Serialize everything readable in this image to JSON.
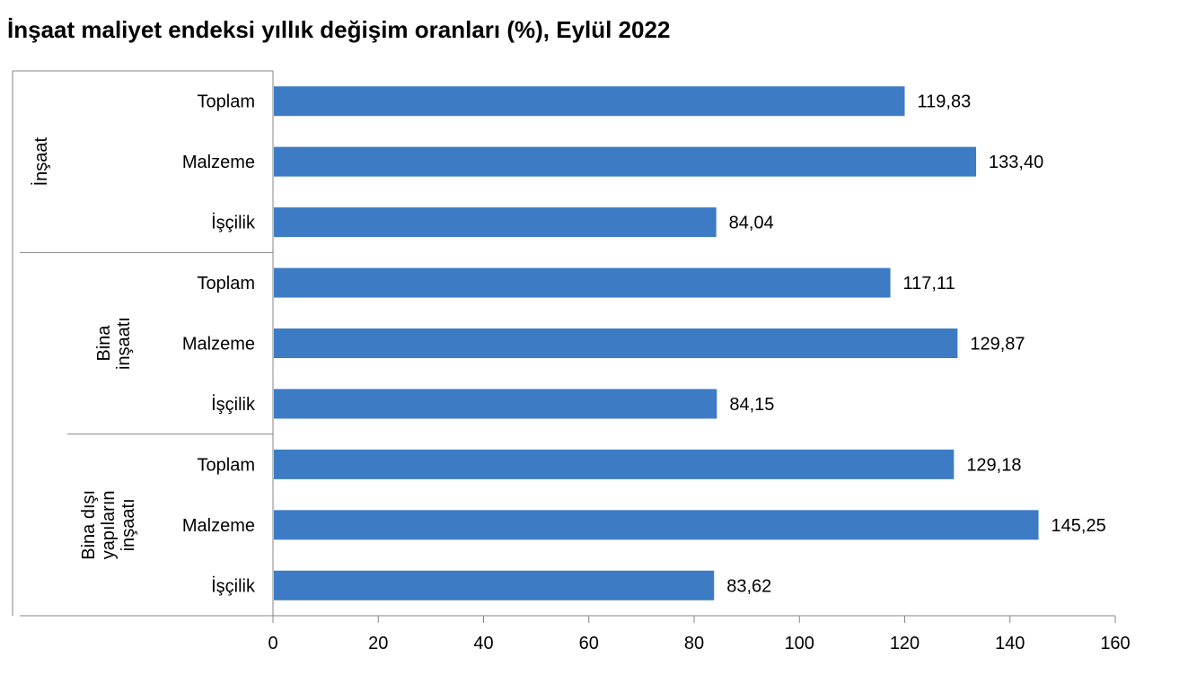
{
  "chart_data": {
    "type": "bar",
    "orientation": "horizontal",
    "title": "İnşaat maliyet endeksi yıllık değişim oranları (%), Eylül 2022",
    "xlim": [
      0,
      160
    ],
    "xticks": [
      0,
      20,
      40,
      60,
      80,
      100,
      120,
      140,
      160
    ],
    "bar_color": "#3d7cc4",
    "grid": false,
    "groups": [
      {
        "label_lines": [
          "İnşaat"
        ],
        "categories": [
          "Toplam",
          "Malzeme",
          "İşçilik"
        ],
        "values": [
          119.83,
          133.4,
          84.04
        ],
        "value_labels": [
          "119,83",
          "133,40",
          "84,04"
        ]
      },
      {
        "label_lines": [
          "Bina",
          "inşaatı"
        ],
        "categories": [
          "Toplam",
          "Malzeme",
          "İşçilik"
        ],
        "values": [
          117.11,
          129.87,
          84.15
        ],
        "value_labels": [
          "117,11",
          "129,87",
          "84,15"
        ]
      },
      {
        "label_lines": [
          "Bina dışı",
          "yapıların",
          "inşaatı"
        ],
        "categories": [
          "Toplam",
          "Malzeme",
          "İşçilik"
        ],
        "values": [
          129.18,
          145.25,
          83.62
        ],
        "value_labels": [
          "129,18",
          "145,25",
          "83,62"
        ]
      }
    ]
  }
}
